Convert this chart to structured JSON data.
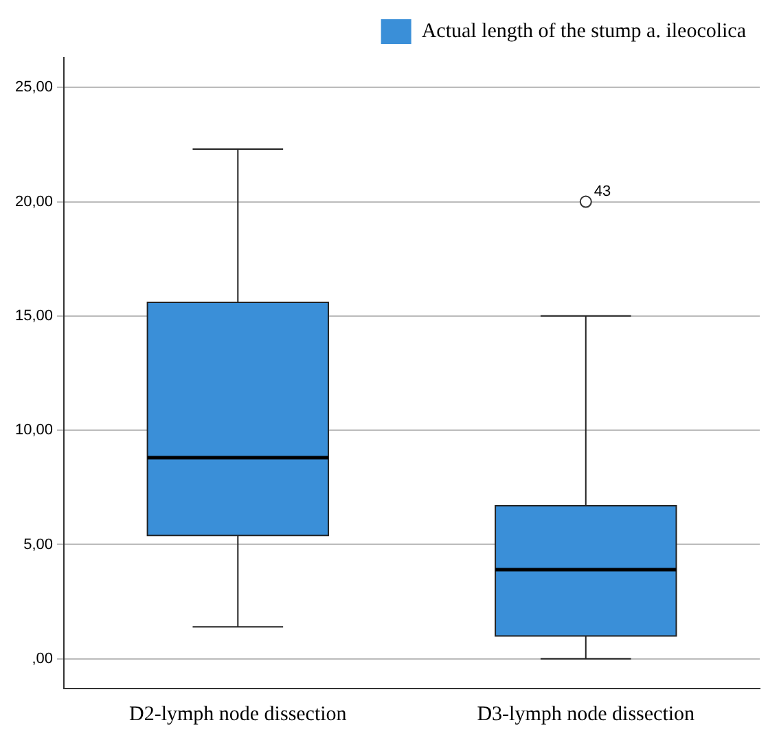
{
  "chart_data": {
    "type": "box",
    "categories": [
      "D2-lymph node dissection",
      "D3-lymph node dissection"
    ],
    "series": [
      {
        "name": "Actual length of the stump a. ileocolica",
        "color": "#3a8fd8",
        "boxes": [
          {
            "low": 1.4,
            "q1": 5.4,
            "median": 8.8,
            "q3": 15.6,
            "high": 22.3
          },
          {
            "low": 0,
            "q1": 1.0,
            "median": 3.9,
            "q3": 6.7,
            "high": 15.0,
            "outliers": [
              20.0
            ]
          }
        ]
      }
    ],
    "ylim": [
      -1.3,
      26.3
    ],
    "yticks": [
      {
        "value": 0,
        "label": ",00"
      },
      {
        "value": 5,
        "label": "5,00"
      },
      {
        "value": 10,
        "label": "10,00"
      },
      {
        "value": 15,
        "label": "15,00"
      },
      {
        "value": 20,
        "label": "20,00"
      },
      {
        "value": 25,
        "label": "25,00"
      }
    ],
    "annotations": [
      "43"
    ],
    "grid": "y",
    "legend": "top right"
  }
}
